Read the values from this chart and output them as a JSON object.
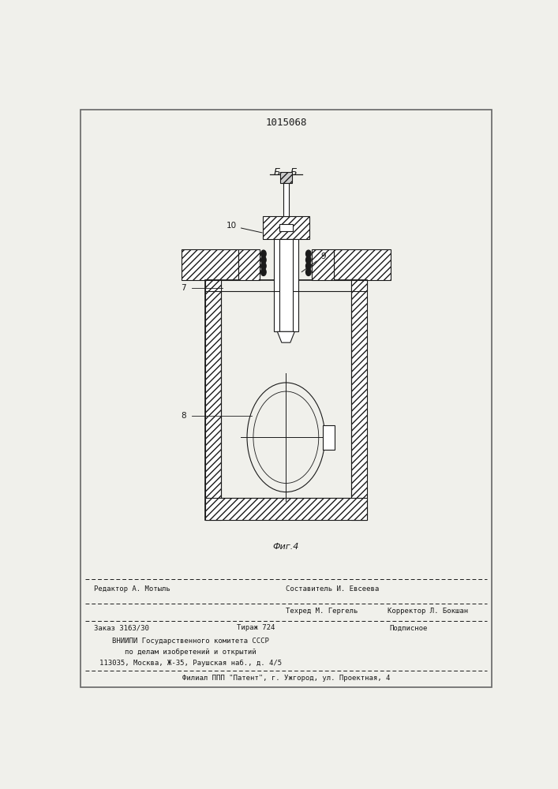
{
  "patent_number": "1015068",
  "section_label": "Б - Б",
  "fig_label": "Фиг.4",
  "bg_color": "#f0f0eb",
  "line_color": "#1a1a1a",
  "footer_line1_left": "Редактор А. Мотыль",
  "footer_line1_center": "Составитель И. Евсеева",
  "footer_line2_center": "Техред М. Гергель",
  "footer_line2_right": "Корректор Л. Бокшан",
  "footer_line3_left": "Заказ 3163/30",
  "footer_line3_center": "Тираж 724",
  "footer_line3_right": "Подписное",
  "footer_line4": "ВНИИПИ Государственного комитета СССР",
  "footer_line5": "по делам изобретений и открытий",
  "footer_line6": "113035, Москва, Ж-35, Раушская наб., д. 4/5",
  "footer_line7": "Филиал ППП \"Патент\", г. Ужгород, ул. Проектная, 4"
}
